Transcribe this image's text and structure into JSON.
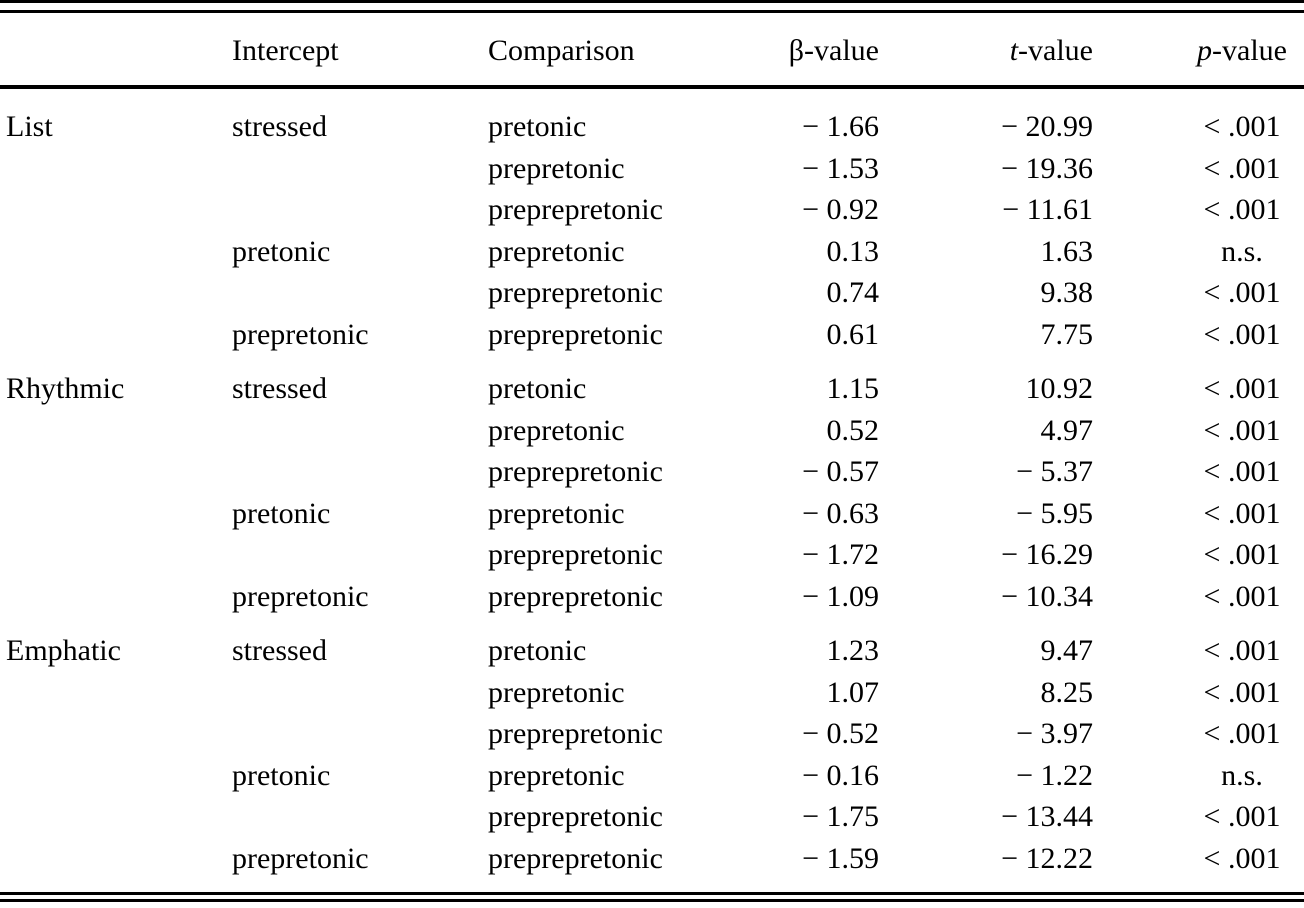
{
  "table": {
    "columns": {
      "group": "",
      "intercept": "Intercept",
      "comparison": "Comparison",
      "beta": {
        "prefix": "β",
        "suffix": "-value"
      },
      "t": {
        "prefix": "t",
        "suffix": "-value"
      },
      "p": {
        "prefix": "p",
        "suffix": "-value"
      }
    },
    "groups": [
      {
        "label": "List",
        "rows": [
          {
            "intercept": "stressed",
            "comparison": "pretonic",
            "beta": "− 1.66",
            "t": "− 20.99",
            "p": "< .001"
          },
          {
            "intercept": "",
            "comparison": "prepretonic",
            "beta": "− 1.53",
            "t": "− 19.36",
            "p": "< .001"
          },
          {
            "intercept": "",
            "comparison": "preprepretonic",
            "beta": "− 0.92",
            "t": "− 11.61",
            "p": "< .001"
          },
          {
            "intercept": "pretonic",
            "comparison": "prepretonic",
            "beta": "0.13",
            "t": "1.63",
            "p": "n.s."
          },
          {
            "intercept": "",
            "comparison": "preprepretonic",
            "beta": "0.74",
            "t": "9.38",
            "p": "< .001"
          },
          {
            "intercept": "prepretonic",
            "comparison": "preprepretonic",
            "beta": "0.61",
            "t": "7.75",
            "p": "< .001"
          }
        ]
      },
      {
        "label": "Rhythmic",
        "rows": [
          {
            "intercept": "stressed",
            "comparison": "pretonic",
            "beta": "1.15",
            "t": "10.92",
            "p": "< .001"
          },
          {
            "intercept": "",
            "comparison": "prepretonic",
            "beta": "0.52",
            "t": "4.97",
            "p": "< .001"
          },
          {
            "intercept": "",
            "comparison": "preprepretonic",
            "beta": "− 0.57",
            "t": "− 5.37",
            "p": "< .001"
          },
          {
            "intercept": "pretonic",
            "comparison": "prepretonic",
            "beta": "− 0.63",
            "t": "− 5.95",
            "p": "< .001"
          },
          {
            "intercept": "",
            "comparison": "preprepretonic",
            "beta": "− 1.72",
            "t": "− 16.29",
            "p": "< .001"
          },
          {
            "intercept": "prepretonic",
            "comparison": "preprepretonic",
            "beta": "− 1.09",
            "t": "− 10.34",
            "p": "< .001"
          }
        ]
      },
      {
        "label": "Emphatic",
        "rows": [
          {
            "intercept": "stressed",
            "comparison": "pretonic",
            "beta": "1.23",
            "t": "9.47",
            "p": "< .001"
          },
          {
            "intercept": "",
            "comparison": "prepretonic",
            "beta": "1.07",
            "t": "8.25",
            "p": "< .001"
          },
          {
            "intercept": "",
            "comparison": "preprepretonic",
            "beta": "− 0.52",
            "t": "− 3.97",
            "p": "< .001"
          },
          {
            "intercept": "pretonic",
            "comparison": "prepretonic",
            "beta": "− 0.16",
            "t": "− 1.22",
            "p": "n.s."
          },
          {
            "intercept": "",
            "comparison": "preprepretonic",
            "beta": "− 1.75",
            "t": "− 13.44",
            "p": "< .001"
          },
          {
            "intercept": "prepretonic",
            "comparison": "preprepretonic",
            "beta": "− 1.59",
            "t": "− 12.22",
            "p": "< .001"
          }
        ]
      }
    ],
    "colors": {
      "text": "#000000",
      "background": "#ffffff",
      "rule": "#000000"
    }
  }
}
